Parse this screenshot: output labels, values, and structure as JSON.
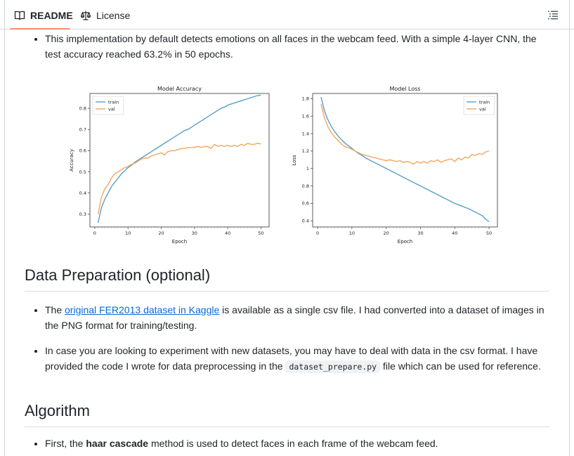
{
  "tabs": [
    {
      "label": "README",
      "icon": "book-icon",
      "active": true
    },
    {
      "label": "License",
      "icon": "law-scale-icon",
      "active": false
    }
  ],
  "outline_icon": "list-outline-icon",
  "bullet_top": "This implementation by default detects emotions on all faces in the webcam feed. With a simple 4-layer CNN, the test accuracy reached 63.2% in 50 epochs.",
  "sections": {
    "data_prep": {
      "heading": "Data Preparation (optional)",
      "item1": {
        "prefix": "The ",
        "link": "original FER2013 dataset in Kaggle",
        "suffix": " is available as a single csv file. I had converted into a dataset of images in the PNG format for training/testing."
      },
      "item2": {
        "prefix": "In case you are looking to experiment with new datasets, you may have to deal with data in the csv format. I have provided the code I wrote for data preprocessing in the ",
        "code": "dataset_prepare.py",
        "suffix": " file which can be used for reference."
      }
    },
    "algorithm": {
      "heading": "Algorithm",
      "item1": {
        "prefix": "First, the ",
        "bold": "haar cascade",
        "suffix": " method is used to detect faces in each frame of the webcam feed."
      }
    }
  },
  "colors": {
    "train": "#5a9ec9",
    "val": "#f5a65b",
    "link": "#0969da",
    "tab_underline": "#fd8c73"
  },
  "chart_data": [
    {
      "type": "line",
      "title": "Model Accuracy",
      "xlabel": "Epoch",
      "ylabel": "Accuracy",
      "xlim": [
        1,
        50
      ],
      "ylim": [
        0.24,
        0.87
      ],
      "xticks": [
        0,
        10,
        20,
        30,
        40,
        50
      ],
      "yticks": [
        0.3,
        0.4,
        0.5,
        0.6,
        0.7,
        0.8
      ],
      "legend": "top-left",
      "x": [
        1,
        2,
        3,
        4,
        5,
        6,
        7,
        8,
        9,
        10,
        11,
        12,
        13,
        14,
        15,
        16,
        17,
        18,
        19,
        20,
        21,
        22,
        23,
        24,
        25,
        26,
        27,
        28,
        29,
        30,
        31,
        32,
        33,
        34,
        35,
        36,
        37,
        38,
        39,
        40,
        41,
        42,
        43,
        44,
        45,
        46,
        47,
        48,
        49,
        50
      ],
      "series": [
        {
          "name": "train",
          "values": [
            0.26,
            0.33,
            0.37,
            0.4,
            0.43,
            0.45,
            0.47,
            0.49,
            0.505,
            0.52,
            0.53,
            0.545,
            0.555,
            0.565,
            0.575,
            0.585,
            0.595,
            0.605,
            0.615,
            0.625,
            0.635,
            0.645,
            0.655,
            0.665,
            0.675,
            0.685,
            0.695,
            0.7,
            0.71,
            0.72,
            0.73,
            0.74,
            0.75,
            0.76,
            0.77,
            0.78,
            0.79,
            0.8,
            0.805,
            0.815,
            0.82,
            0.825,
            0.83,
            0.835,
            0.84,
            0.845,
            0.85,
            0.855,
            0.86,
            0.862
          ]
        },
        {
          "name": "val",
          "values": [
            0.3,
            0.38,
            0.42,
            0.44,
            0.47,
            0.49,
            0.5,
            0.51,
            0.52,
            0.525,
            0.535,
            0.54,
            0.55,
            0.56,
            0.565,
            0.565,
            0.575,
            0.58,
            0.585,
            0.59,
            0.58,
            0.595,
            0.6,
            0.6,
            0.605,
            0.61,
            0.61,
            0.615,
            0.615,
            0.615,
            0.62,
            0.615,
            0.62,
            0.62,
            0.61,
            0.63,
            0.62,
            0.625,
            0.62,
            0.625,
            0.62,
            0.625,
            0.62,
            0.63,
            0.625,
            0.635,
            0.63,
            0.63,
            0.635,
            0.632
          ]
        }
      ]
    },
    {
      "type": "line",
      "title": "Model Loss",
      "xlabel": "Epoch",
      "ylabel": "Loss",
      "xlim": [
        1,
        50
      ],
      "ylim": [
        0.33,
        1.86
      ],
      "xticks": [
        0,
        10,
        20,
        30,
        40,
        50
      ],
      "yticks": [
        0.4,
        0.6,
        0.8,
        1.0,
        1.2,
        1.4,
        1.6,
        1.8
      ],
      "legend": "top-right",
      "x": [
        1,
        2,
        3,
        4,
        5,
        6,
        7,
        8,
        9,
        10,
        11,
        12,
        13,
        14,
        15,
        16,
        17,
        18,
        19,
        20,
        21,
        22,
        23,
        24,
        25,
        26,
        27,
        28,
        29,
        30,
        31,
        32,
        33,
        34,
        35,
        36,
        37,
        38,
        39,
        40,
        41,
        42,
        43,
        44,
        45,
        46,
        47,
        48,
        49,
        50
      ],
      "series": [
        {
          "name": "train",
          "values": [
            1.82,
            1.66,
            1.56,
            1.48,
            1.42,
            1.37,
            1.33,
            1.29,
            1.26,
            1.23,
            1.2,
            1.17,
            1.15,
            1.12,
            1.1,
            1.08,
            1.06,
            1.04,
            1.02,
            1.0,
            0.98,
            0.96,
            0.94,
            0.92,
            0.9,
            0.88,
            0.86,
            0.84,
            0.82,
            0.8,
            0.78,
            0.76,
            0.74,
            0.72,
            0.7,
            0.68,
            0.66,
            0.64,
            0.62,
            0.6,
            0.585,
            0.57,
            0.555,
            0.54,
            0.52,
            0.5,
            0.48,
            0.46,
            0.42,
            0.39
          ]
        },
        {
          "name": "val",
          "values": [
            1.74,
            1.58,
            1.48,
            1.41,
            1.36,
            1.32,
            1.28,
            1.25,
            1.24,
            1.22,
            1.2,
            1.18,
            1.16,
            1.15,
            1.14,
            1.13,
            1.12,
            1.11,
            1.1,
            1.09,
            1.1,
            1.09,
            1.08,
            1.09,
            1.07,
            1.08,
            1.07,
            1.05,
            1.08,
            1.06,
            1.08,
            1.06,
            1.09,
            1.08,
            1.1,
            1.07,
            1.09,
            1.1,
            1.11,
            1.08,
            1.12,
            1.1,
            1.13,
            1.12,
            1.16,
            1.15,
            1.17,
            1.16,
            1.19,
            1.2
          ]
        }
      ]
    }
  ]
}
